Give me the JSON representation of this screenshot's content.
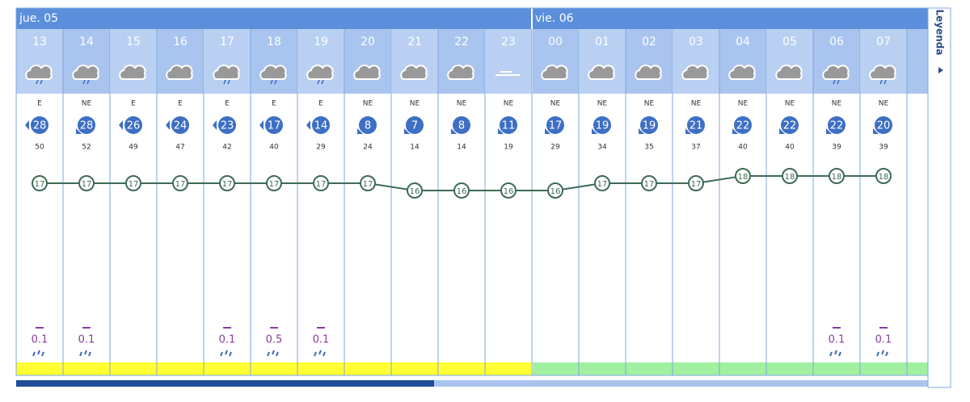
{
  "days": [
    {
      "label": "jue. 05"
    },
    {
      "label": "vie. 06"
    }
  ],
  "legend": "Leyenda",
  "hours": [
    {
      "hour": "13",
      "wind_dir": "E",
      "wind": 28,
      "gust": 50,
      "temp": 17,
      "precip": 0.1
    },
    {
      "hour": "14",
      "wind_dir": "NE",
      "wind": 28,
      "gust": 52,
      "temp": 17,
      "precip": 0.1
    },
    {
      "hour": "15",
      "wind_dir": "E",
      "wind": 26,
      "gust": 49,
      "temp": 17,
      "precip": null
    },
    {
      "hour": "16",
      "wind_dir": "E",
      "wind": 24,
      "gust": 47,
      "temp": 17,
      "precip": null
    },
    {
      "hour": "17",
      "wind_dir": "E",
      "wind": 23,
      "gust": 42,
      "temp": 17,
      "precip": 0.1
    },
    {
      "hour": "18",
      "wind_dir": "E",
      "wind": 17,
      "gust": 40,
      "temp": 17,
      "precip": 0.5
    },
    {
      "hour": "19",
      "wind_dir": "E",
      "wind": 14,
      "gust": 29,
      "temp": 17,
      "precip": 0.1
    },
    {
      "hour": "20",
      "wind_dir": "NE",
      "wind": 8,
      "gust": 24,
      "temp": 17,
      "precip": null
    },
    {
      "hour": "21",
      "wind_dir": "NE",
      "wind": 7,
      "gust": 14,
      "temp": 16,
      "precip": null
    },
    {
      "hour": "22",
      "wind_dir": "NE",
      "wind": 8,
      "gust": 14,
      "temp": 16,
      "precip": null
    },
    {
      "hour": "23",
      "wind_dir": "NE",
      "wind": 11,
      "gust": 19,
      "temp": 16,
      "precip": null
    },
    {
      "hour": "00",
      "wind_dir": "NE",
      "wind": 17,
      "gust": 29,
      "temp": 16,
      "precip": null
    },
    {
      "hour": "01",
      "wind_dir": "NE",
      "wind": 19,
      "gust": 34,
      "temp": 17,
      "precip": null
    },
    {
      "hour": "02",
      "wind_dir": "NE",
      "wind": 19,
      "gust": 35,
      "temp": 17,
      "precip": null
    },
    {
      "hour": "03",
      "wind_dir": "NE",
      "wind": 21,
      "gust": 37,
      "temp": 17,
      "precip": null
    },
    {
      "hour": "04",
      "wind_dir": "NE",
      "wind": 22,
      "gust": 40,
      "temp": 18,
      "precip": null
    },
    {
      "hour": "05",
      "wind_dir": "NE",
      "wind": 22,
      "gust": 40,
      "temp": 18,
      "precip": null
    },
    {
      "hour": "06",
      "wind_dir": "NE",
      "wind": 22,
      "gust": 39,
      "temp": 18,
      "precip": 0.1
    },
    {
      "hour": "07",
      "wind_dir": "NE",
      "wind": 20,
      "gust": 39,
      "temp": 18,
      "precip": 0.1
    }
  ]
}
